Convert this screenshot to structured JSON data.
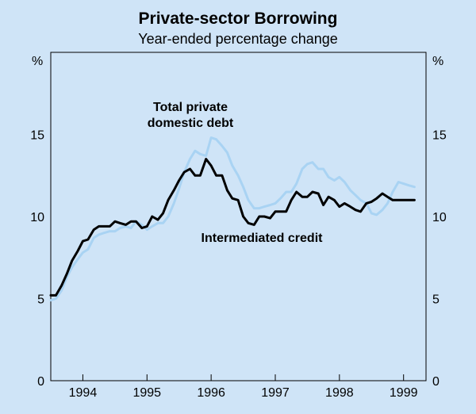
{
  "chart_data": {
    "type": "line",
    "title": "Private-sector Borrowing",
    "subtitle": "Year-ended percentage change",
    "y_unit_left": "%",
    "y_unit_right": "%",
    "ylim": [
      0,
      20
    ],
    "yticks": [
      0,
      5,
      10,
      15
    ],
    "xlim": [
      1993.5,
      1999.35
    ],
    "xtick_labels": [
      "1994",
      "1995",
      "1996",
      "1997",
      "1998",
      "1999"
    ],
    "xtick_positions": [
      1994,
      1995,
      1996,
      1997,
      1998,
      1999
    ],
    "grid": false,
    "series": [
      {
        "name": "Total private domestic debt",
        "color": "#a9d3f3",
        "x": [
          1993.5,
          1993.58,
          1993.67,
          1993.75,
          1993.83,
          1993.92,
          1994.0,
          1994.08,
          1994.17,
          1994.25,
          1994.33,
          1994.42,
          1994.5,
          1994.58,
          1994.67,
          1994.75,
          1994.83,
          1994.92,
          1995.0,
          1995.08,
          1995.17,
          1995.25,
          1995.33,
          1995.42,
          1995.5,
          1995.58,
          1995.67,
          1995.75,
          1995.83,
          1995.92,
          1996.0,
          1996.08,
          1996.17,
          1996.25,
          1996.33,
          1996.42,
          1996.5,
          1996.58,
          1996.67,
          1996.75,
          1996.83,
          1996.92,
          1997.0,
          1997.08,
          1997.17,
          1997.25,
          1997.33,
          1997.42,
          1997.5,
          1997.58,
          1997.67,
          1997.75,
          1997.83,
          1997.92,
          1998.0,
          1998.08,
          1998.17,
          1998.25,
          1998.33,
          1998.42,
          1998.5,
          1998.58,
          1998.67,
          1998.75,
          1998.83,
          1998.92,
          1999.0,
          1999.08,
          1999.17
        ],
        "values": [
          4.9,
          5.0,
          5.5,
          6.3,
          6.9,
          7.4,
          7.8,
          8.0,
          8.7,
          8.9,
          9.0,
          9.1,
          9.1,
          9.3,
          9.4,
          9.3,
          9.7,
          9.5,
          9.2,
          9.4,
          9.6,
          9.6,
          10.0,
          10.8,
          11.7,
          12.7,
          13.5,
          14.0,
          13.8,
          13.7,
          14.8,
          14.7,
          14.3,
          13.9,
          13.1,
          12.5,
          11.8,
          11.0,
          10.5,
          10.5,
          10.6,
          10.7,
          10.8,
          11.1,
          11.5,
          11.5,
          12.0,
          12.9,
          13.2,
          13.3,
          12.9,
          12.9,
          12.4,
          12.2,
          12.4,
          12.1,
          11.6,
          11.3,
          11.0,
          10.8,
          10.2,
          10.1,
          10.4,
          10.8,
          11.5,
          12.1,
          12.0,
          11.9,
          11.8
        ]
      },
      {
        "name": "Intermediated credit",
        "color": "#000000",
        "x": [
          1993.5,
          1993.58,
          1993.67,
          1993.75,
          1993.83,
          1993.92,
          1994.0,
          1994.08,
          1994.17,
          1994.25,
          1994.33,
          1994.42,
          1994.5,
          1994.58,
          1994.67,
          1994.75,
          1994.83,
          1994.92,
          1995.0,
          1995.08,
          1995.17,
          1995.25,
          1995.33,
          1995.42,
          1995.5,
          1995.58,
          1995.67,
          1995.75,
          1995.83,
          1995.92,
          1996.0,
          1996.08,
          1996.17,
          1996.25,
          1996.33,
          1996.42,
          1996.5,
          1996.58,
          1996.67,
          1996.75,
          1996.83,
          1996.92,
          1997.0,
          1997.08,
          1997.17,
          1997.25,
          1997.33,
          1997.42,
          1997.5,
          1997.58,
          1997.67,
          1997.75,
          1997.83,
          1997.92,
          1998.0,
          1998.08,
          1998.17,
          1998.25,
          1998.33,
          1998.42,
          1998.5,
          1998.58,
          1998.67,
          1998.75,
          1998.83,
          1998.92,
          1999.0,
          1999.08,
          1999.17
        ],
        "values": [
          5.2,
          5.2,
          5.8,
          6.5,
          7.3,
          7.9,
          8.5,
          8.6,
          9.2,
          9.4,
          9.4,
          9.4,
          9.7,
          9.6,
          9.5,
          9.7,
          9.7,
          9.3,
          9.4,
          10.0,
          9.8,
          10.2,
          11.0,
          11.6,
          12.2,
          12.7,
          12.9,
          12.5,
          12.5,
          13.5,
          13.1,
          12.5,
          12.5,
          11.6,
          11.1,
          11.0,
          10.0,
          9.6,
          9.5,
          10.0,
          10.0,
          9.9,
          10.3,
          10.3,
          10.3,
          11.0,
          11.5,
          11.2,
          11.2,
          11.5,
          11.4,
          10.7,
          11.2,
          11.0,
          10.6,
          10.8,
          10.6,
          10.4,
          10.3,
          10.8,
          10.9,
          11.1,
          11.4,
          11.2,
          11.0,
          11.0,
          11.0,
          11.0,
          11.0
        ]
      }
    ],
    "annotations": [
      {
        "lines": [
          "Total private",
          "domestic debt"
        ],
        "series": "Total private domestic debt"
      },
      {
        "lines": [
          "Intermediated credit"
        ],
        "series": "Intermediated credit"
      }
    ]
  }
}
